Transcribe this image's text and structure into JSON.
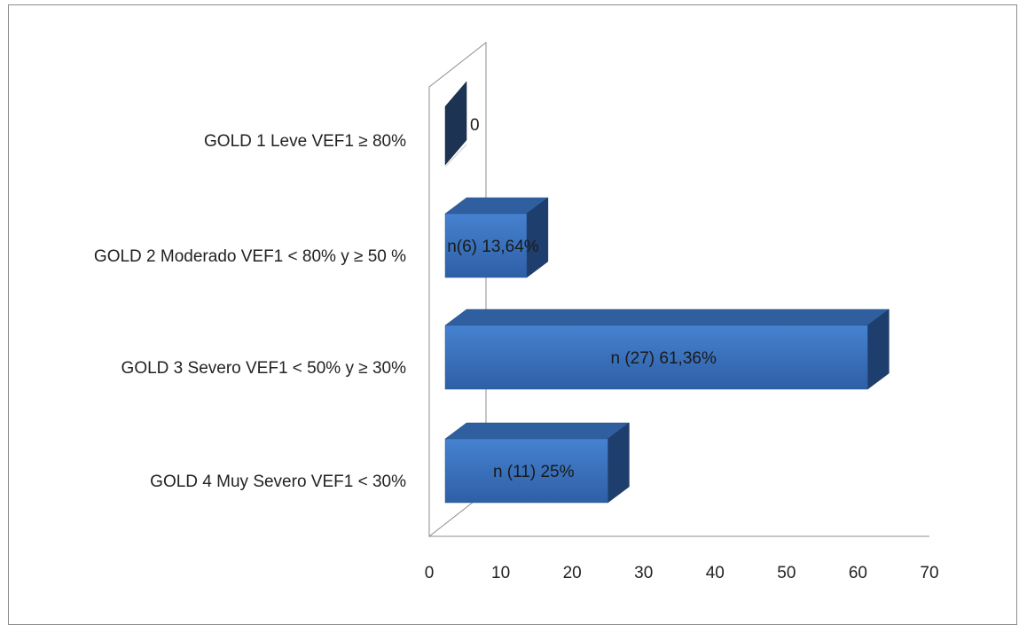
{
  "chart_data": {
    "type": "bar",
    "orientation": "horizontal",
    "style": "3d",
    "categories": [
      "GOLD 4 Muy Severo VEF1 < 30%",
      "GOLD 3 Severo VEF1 < 50% y ≥ 30%",
      "GOLD 2 Moderado VEF1 < 80% y ≥ 50 %",
      "GOLD 1 Leve VEF1 ≥ 80%"
    ],
    "values": [
      25,
      61.36,
      13.64,
      0
    ],
    "data_labels": [
      "n (11) 25%",
      "n (27) 61,36%",
      "n(6) 13,64%",
      "0"
    ],
    "xlim": [
      0,
      70
    ],
    "xticks": [
      0,
      10,
      20,
      30,
      40,
      50,
      60,
      70
    ],
    "grid": false,
    "legend": "none",
    "colors": {
      "bar_front": "#3a6fbf",
      "bar_top": "#2f5f9e",
      "bar_side": "#1e3f6e",
      "zero_bar": "#1c3354",
      "axis": "#8c8c8c"
    }
  }
}
